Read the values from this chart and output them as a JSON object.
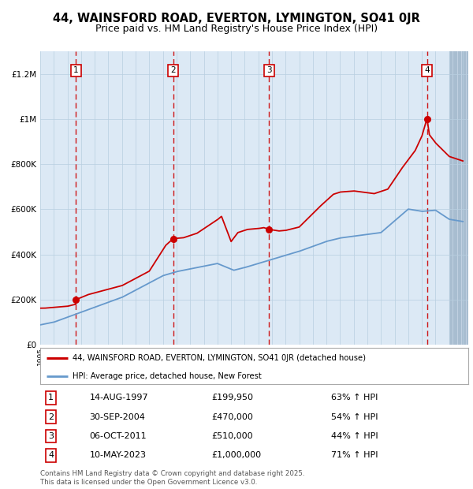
{
  "title": "44, WAINSFORD ROAD, EVERTON, LYMINGTON, SO41 0JR",
  "subtitle": "Price paid vs. HM Land Registry's House Price Index (HPI)",
  "ylim": [
    0,
    1300000
  ],
  "yticks": [
    0,
    200000,
    400000,
    600000,
    800000,
    1000000,
    1200000
  ],
  "ytick_labels": [
    "£0",
    "£200K",
    "£400K",
    "£600K",
    "£800K",
    "£1M",
    "£1.2M"
  ],
  "bg_color": "#dce9f5",
  "hatch_bg_color": "#c8d8ea",
  "red_line_color": "#cc0000",
  "blue_line_color": "#6699cc",
  "dashed_vline_color": "#cc0000",
  "grid_color": "#b8cfe0",
  "sale_year_decimals": [
    1997.625,
    2004.75,
    2011.792,
    2023.375
  ],
  "sale_prices": [
    199950,
    470000,
    510000,
    1000000
  ],
  "sale_labels": [
    "1",
    "2",
    "3",
    "4"
  ],
  "table_rows": [
    [
      "1",
      "14-AUG-1997",
      "£199,950",
      "63% ↑ HPI"
    ],
    [
      "2",
      "30-SEP-2004",
      "£470,000",
      "54% ↑ HPI"
    ],
    [
      "3",
      "06-OCT-2011",
      "£510,000",
      "44% ↑ HPI"
    ],
    [
      "4",
      "10-MAY-2023",
      "£1,000,000",
      "71% ↑ HPI"
    ]
  ],
  "legend_label_red": "44, WAINSFORD ROAD, EVERTON, LYMINGTON, SO41 0JR (detached house)",
  "legend_label_blue": "HPI: Average price, detached house, New Forest",
  "footer_text": "Contains HM Land Registry data © Crown copyright and database right 2025.\nThis data is licensed under the Open Government Licence v3.0."
}
